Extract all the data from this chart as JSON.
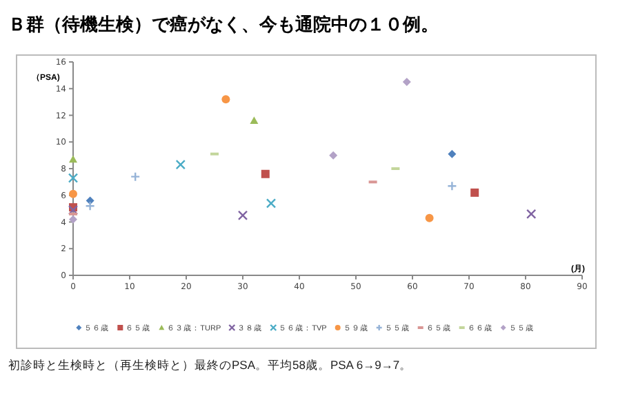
{
  "chart_data": {
    "type": "scatter",
    "title": "Ｂ群（待機生検）で癌がなく、今も通院中の１０例。",
    "ylabel": "（PSA)",
    "xlabel": "(月)",
    "annotations": [
      "初診時と生検時と（再生検時と）最終のPSA。平均58歳。PSA 6→9→7。"
    ],
    "xlim": [
      0,
      90
    ],
    "xticks": [
      0,
      10,
      20,
      30,
      40,
      50,
      60,
      70,
      80,
      90
    ],
    "ylim": [
      0,
      16
    ],
    "yticks": [
      0,
      2,
      4,
      6,
      8,
      10,
      12,
      14,
      16
    ],
    "grid": false,
    "legend": "bottom",
    "series": [
      {
        "name": "５６歳",
        "color": "#4f81bd",
        "marker": "diamond",
        "x": [
          3,
          67
        ],
        "values": [
          5.6,
          9.1
        ]
      },
      {
        "name": "６５歳",
        "color": "#c0504d",
        "marker": "square",
        "x": [
          0,
          34,
          71
        ],
        "values": [
          5.1,
          7.6,
          6.2
        ]
      },
      {
        "name": "６３歳：TURP",
        "color": "#9bbb59",
        "marker": "triangle",
        "x": [
          0,
          32
        ],
        "values": [
          8.7,
          11.6
        ]
      },
      {
        "name": "３８歳",
        "color": "#8064a2",
        "marker": "cross",
        "x": [
          0,
          30,
          81
        ],
        "values": [
          4.9,
          4.5,
          4.6
        ]
      },
      {
        "name": "５６歳：TVP",
        "color": "#4bacc6",
        "marker": "cross",
        "x": [
          0,
          19,
          35
        ],
        "values": [
          7.3,
          8.3,
          5.4
        ]
      },
      {
        "name": "５９歳",
        "color": "#f79646",
        "marker": "circle",
        "x": [
          0,
          27,
          63
        ],
        "values": [
          6.1,
          13.2,
          4.3
        ]
      },
      {
        "name": "５５歳",
        "color": "#95b3d7",
        "marker": "plus",
        "x": [
          3,
          11,
          67
        ],
        "values": [
          5.2,
          7.4,
          6.7
        ]
      },
      {
        "name": "６５歳",
        "color": "#d99694",
        "x": [
          0,
          53
        ],
        "values": [
          4.6,
          7.0
        ]
      },
      {
        "name": "６６歳",
        "color": "#c3d69b",
        "x": [
          25,
          57
        ],
        "values": [
          9.1,
          8.0
        ]
      },
      {
        "name": "５５歳",
        "color": "#b3a2c7",
        "marker": "diamond",
        "x": [
          0,
          46,
          59
        ],
        "values": [
          4.2,
          9.0,
          14.5
        ]
      }
    ]
  }
}
